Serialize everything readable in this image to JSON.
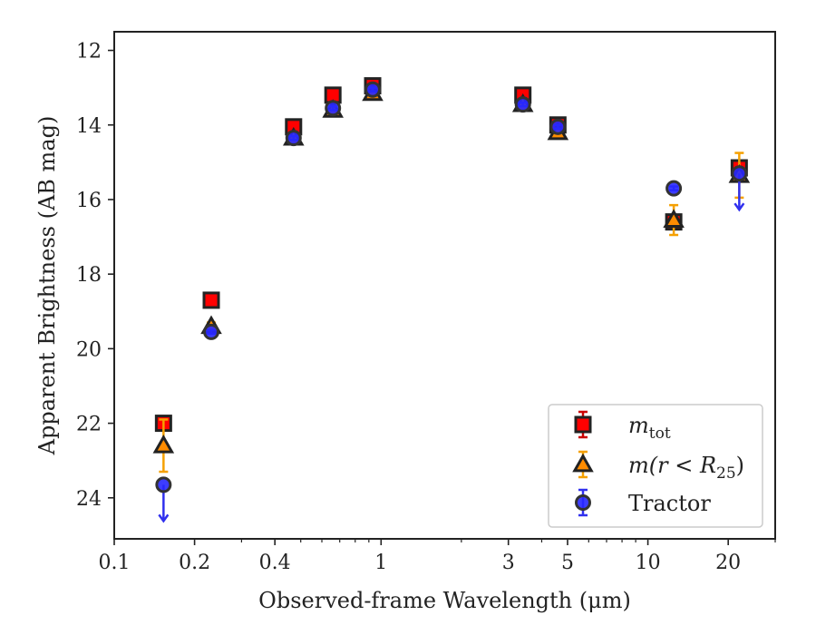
{
  "chart_data": {
    "type": "scatter",
    "title": "",
    "xlabel": "Observed-frame Wavelength (μm)",
    "ylabel": "Apparent Brightness (AB mag)",
    "xscale": "log",
    "xlim": [
      0.1,
      30
    ],
    "ylim": [
      25.1,
      11.5
    ],
    "y_inverted": true,
    "grid": false,
    "legend_position": "lower right",
    "x_ticks": [
      0.1,
      0.2,
      0.4,
      1,
      3,
      5,
      10,
      20
    ],
    "x_tick_labels": [
      "0.1",
      "0.2",
      "0.4",
      "1",
      "3",
      "5",
      "10",
      "20"
    ],
    "y_ticks": [
      12,
      14,
      16,
      18,
      20,
      22,
      24
    ],
    "y_tick_labels": [
      "12",
      "14",
      "16",
      "18",
      "20",
      "22",
      "24"
    ],
    "series": [
      {
        "name": "m_tot",
        "legend_base": "m",
        "legend_sub": "tot",
        "marker": "square",
        "color": "#ff0000",
        "edge_color": "#222222",
        "errorbar_color": "#cc0000",
        "points": [
          {
            "x": 0.153,
            "y": 22.0,
            "err": 0.05,
            "upper_limit": false
          },
          {
            "x": 0.231,
            "y": 18.7,
            "err": 0.05,
            "upper_limit": false
          },
          {
            "x": 0.47,
            "y": 14.05,
            "err": 0.05,
            "upper_limit": false
          },
          {
            "x": 0.66,
            "y": 13.2,
            "err": 0.05,
            "upper_limit": false
          },
          {
            "x": 0.93,
            "y": 12.95,
            "err": 0.05,
            "upper_limit": false
          },
          {
            "x": 3.4,
            "y": 13.2,
            "err": 0.05,
            "upper_limit": false
          },
          {
            "x": 4.6,
            "y": 14.0,
            "err": 0.05,
            "upper_limit": false
          },
          {
            "x": 12.5,
            "y": 16.6,
            "err": 0.1,
            "upper_limit": false
          },
          {
            "x": 22.0,
            "y": 15.15,
            "err": 0.1,
            "upper_limit": false
          }
        ]
      },
      {
        "name": "m(r < R_25)",
        "legend_base": "m(r < R",
        "legend_sub": "25",
        "legend_tail": ")",
        "marker": "triangle",
        "color": "#ff8c00",
        "edge_color": "#222222",
        "errorbar_color": "#f5a000",
        "points": [
          {
            "x": 0.153,
            "y": 22.6,
            "err": 0.7,
            "upper_limit": false
          },
          {
            "x": 0.231,
            "y": 19.4,
            "err": 0.1,
            "upper_limit": false
          },
          {
            "x": 0.47,
            "y": 14.35,
            "err": 0.05,
            "upper_limit": false
          },
          {
            "x": 0.66,
            "y": 13.6,
            "err": 0.05,
            "upper_limit": false
          },
          {
            "x": 0.93,
            "y": 13.15,
            "err": 0.05,
            "upper_limit": false
          },
          {
            "x": 3.4,
            "y": 13.45,
            "err": 0.05,
            "upper_limit": false
          },
          {
            "x": 4.6,
            "y": 14.2,
            "err": 0.05,
            "upper_limit": false
          },
          {
            "x": 12.5,
            "y": 16.55,
            "err": 0.4,
            "upper_limit": false
          },
          {
            "x": 22.0,
            "y": 15.35,
            "err": 0.6,
            "upper_limit": false
          }
        ]
      },
      {
        "name": "Tractor",
        "legend_base": "Tractor",
        "marker": "circle",
        "color": "#2828ff",
        "edge_color": "#333333",
        "errorbar_color": "#3030ee",
        "points": [
          {
            "x": 0.153,
            "y": 23.65,
            "err": 0,
            "upper_limit": true
          },
          {
            "x": 0.231,
            "y": 19.55,
            "err": 0.05,
            "upper_limit": false
          },
          {
            "x": 0.47,
            "y": 14.35,
            "err": 0.05,
            "upper_limit": false
          },
          {
            "x": 0.66,
            "y": 13.55,
            "err": 0.05,
            "upper_limit": false
          },
          {
            "x": 0.93,
            "y": 13.05,
            "err": 0.05,
            "upper_limit": false
          },
          {
            "x": 3.4,
            "y": 13.45,
            "err": 0.05,
            "upper_limit": false
          },
          {
            "x": 4.6,
            "y": 14.05,
            "err": 0.05,
            "upper_limit": false
          },
          {
            "x": 12.5,
            "y": 15.7,
            "err": 0.05,
            "upper_limit": false
          },
          {
            "x": 22.0,
            "y": 15.3,
            "err": 0,
            "upper_limit": true
          }
        ]
      }
    ]
  }
}
